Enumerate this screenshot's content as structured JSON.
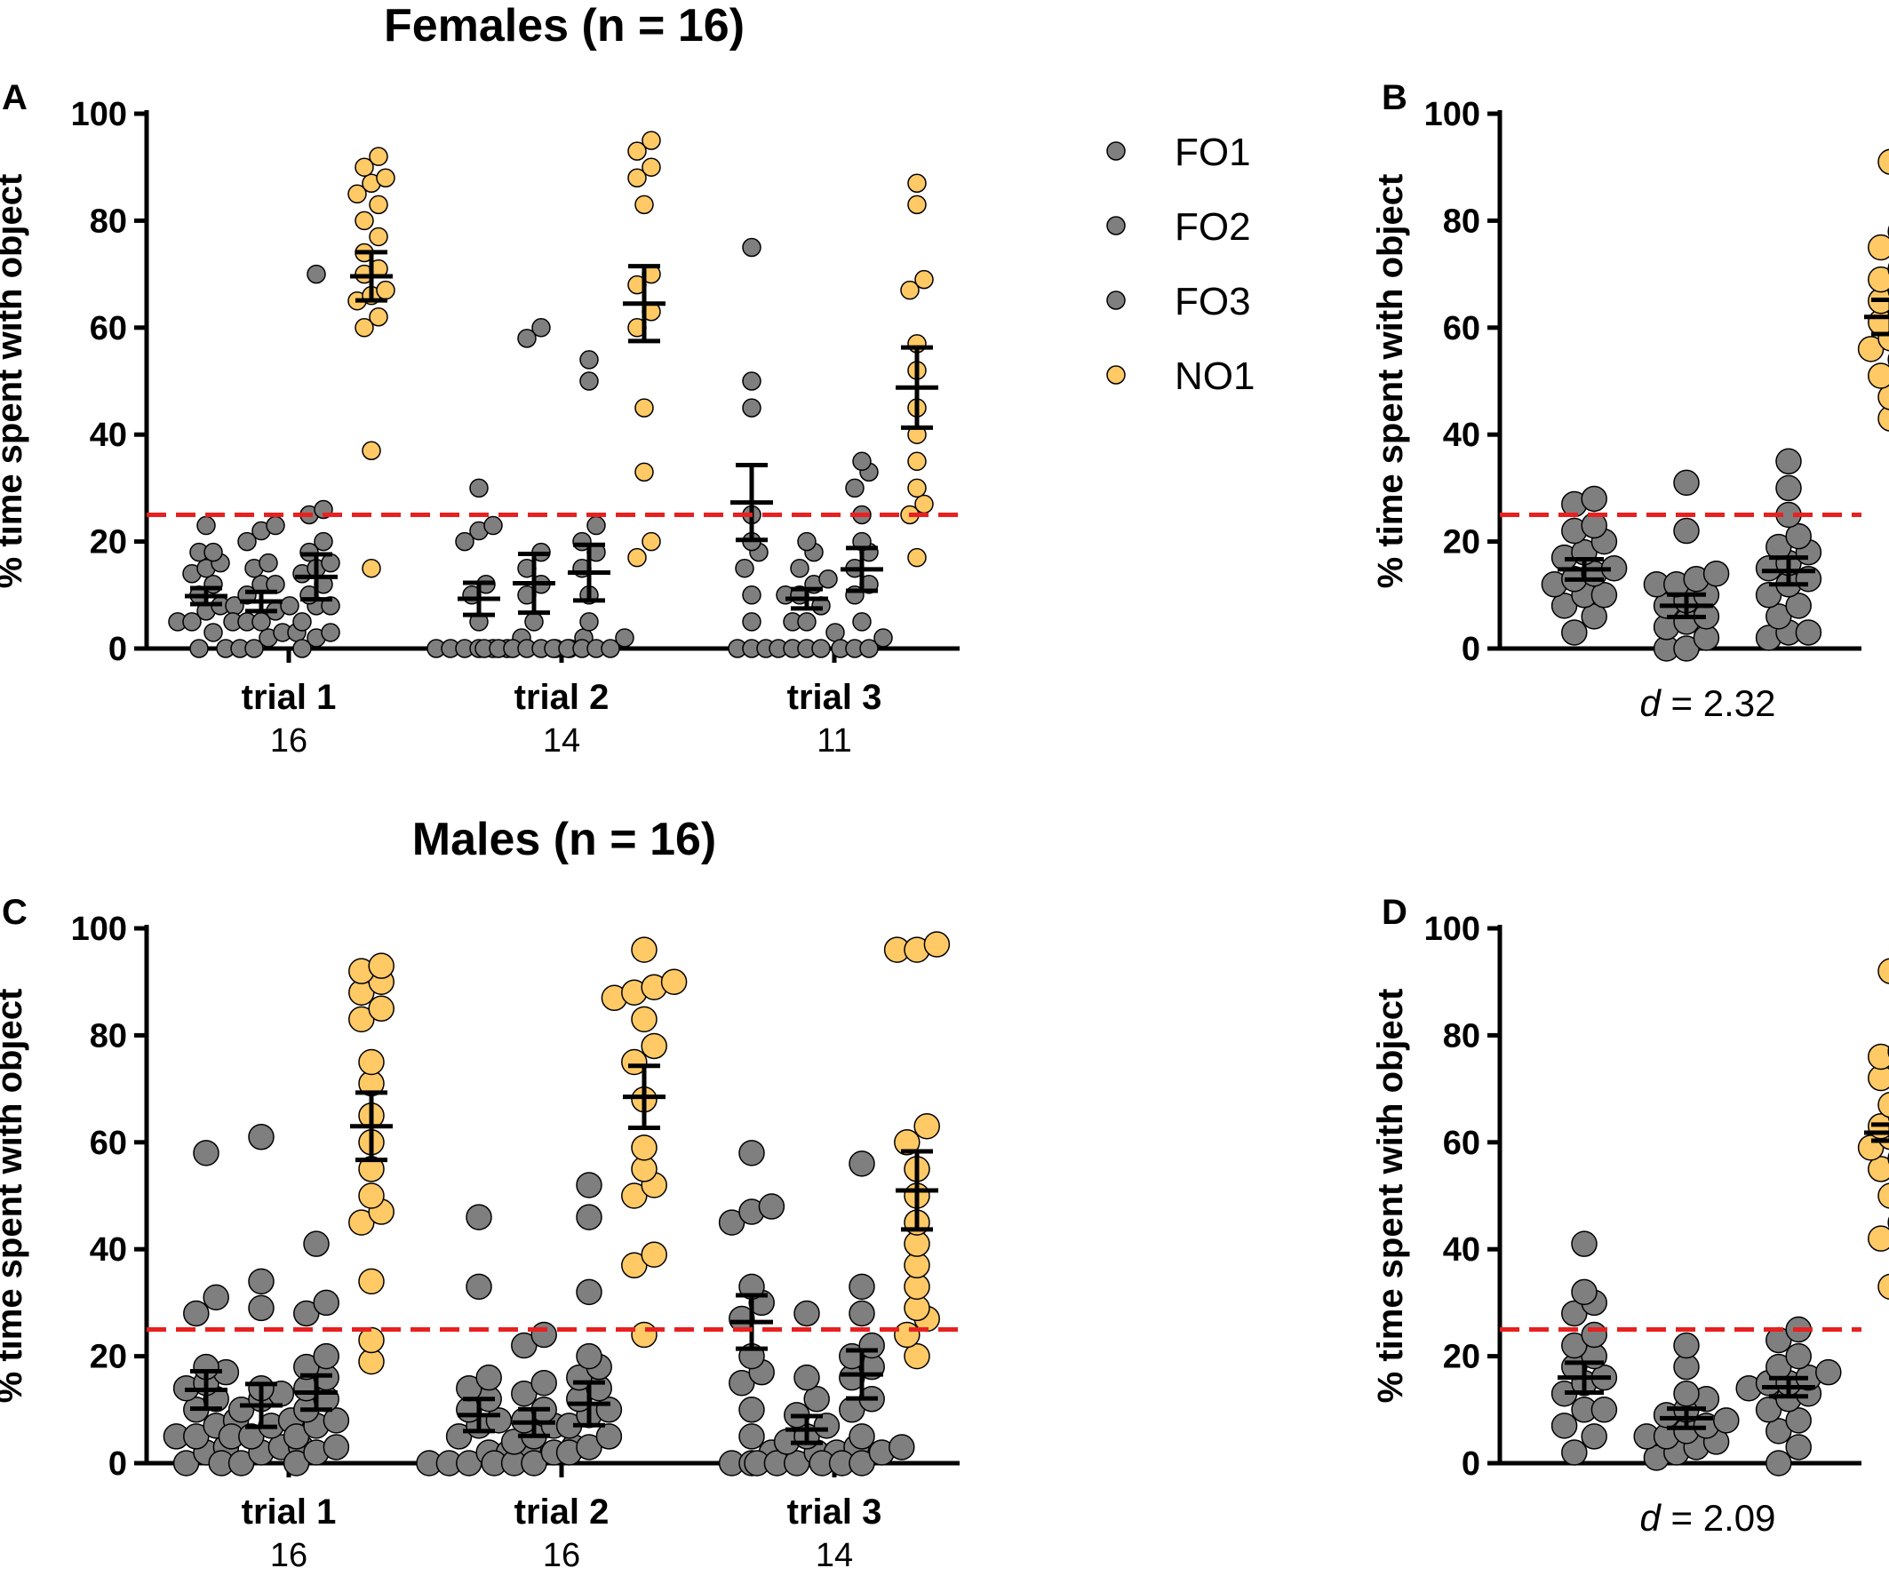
{
  "figure": {
    "female_title": "Females (n = 16)",
    "male_title": "Males (n = 16)",
    "panel_letters": [
      "A",
      "B",
      "C",
      "D"
    ],
    "y_axis_label": "% time spent with object",
    "y_ticks": [
      "0",
      "20",
      "40",
      "60",
      "80",
      "100"
    ]
  },
  "legend": {
    "items": [
      {
        "label": "FO1",
        "color": "#7f7f7f"
      },
      {
        "label": "FO2",
        "color": "#7f7f7f"
      },
      {
        "label": "FO3",
        "color": "#7f7f7f"
      },
      {
        "label": "NO1",
        "color": "#ffc965"
      }
    ]
  },
  "colors": {
    "familiar": "#7f7f7f",
    "novel": "#ffc965",
    "chance_line": "#e8201f",
    "axis": "#000000"
  },
  "chart_data": [
    {
      "panel": "A",
      "type": "scatter",
      "title": "Females (n = 16)",
      "ylabel": "% time spent with object",
      "ylim": [
        0,
        100
      ],
      "chance_line": 25,
      "categories": [
        "trial 1",
        "trial 2",
        "trial 3"
      ],
      "n_per_trial": [
        "16",
        "14",
        "11"
      ],
      "series": [
        {
          "name": "FO1",
          "points": [
            [
              0,
              3,
              5,
              5,
              7,
              8,
              8,
              10,
              12,
              14,
              15,
              16,
              18,
              18,
              23
            ],
            [
              0,
              0,
              0,
              0,
              0,
              0,
              2,
              5,
              10,
              12,
              20,
              22,
              23,
              30
            ],
            [
              0,
              0,
              0,
              5,
              10,
              15,
              18,
              20,
              25,
              45,
              50,
              75
            ]
          ],
          "mean": [
            9.8,
            9.3,
            27.3
          ],
          "sem": [
            1.5,
            3.0,
            7.0
          ]
        },
        {
          "name": "FO2",
          "points": [
            [
              0,
              0,
              0,
              2,
              3,
              3,
              5,
              5,
              5,
              7,
              8,
              10,
              12,
              12,
              15,
              16,
              20,
              22,
              23
            ],
            [
              0,
              0,
              0,
              0,
              0,
              0,
              0,
              2,
              5,
              10,
              12,
              15,
              18,
              58,
              60
            ],
            [
              0,
              0,
              0,
              0,
              3,
              5,
              5,
              8,
              10,
              10,
              12,
              13,
              15,
              18,
              20
            ]
          ],
          "mean": [
            8.8,
            12.2,
            9.3
          ],
          "sem": [
            1.8,
            5.5,
            1.8
          ]
        },
        {
          "name": "FO3",
          "points": [
            [
              0,
              2,
              3,
              5,
              8,
              8,
              10,
              12,
              14,
              15,
              16,
              18,
              20,
              25,
              26,
              70
            ],
            [
              0,
              0,
              0,
              0,
              0,
              2,
              5,
              10,
              15,
              18,
              20,
              23,
              50,
              54
            ],
            [
              0,
              0,
              0,
              2,
              5,
              10,
              12,
              15,
              18,
              20,
              25,
              30,
              33,
              35
            ]
          ],
          "mean": [
            13.4,
            14.2,
            14.8
          ],
          "sem": [
            4.2,
            5.2,
            4.0
          ]
        },
        {
          "name": "NO1",
          "points": [
            [
              15,
              37,
              60,
              62,
              65,
              66,
              67,
              70,
              71,
              74,
              77,
              80,
              83,
              85,
              87,
              88,
              90,
              92
            ],
            [
              17,
              20,
              33,
              45,
              60,
              63,
              68,
              70,
              83,
              88,
              90,
              93,
              95
            ],
            [
              17,
              25,
              27,
              30,
              35,
              40,
              45,
              52,
              57,
              67,
              69,
              83,
              87
            ]
          ],
          "mean": [
            69.6,
            64.5,
            48.8
          ],
          "sem": [
            4.5,
            7.0,
            7.5
          ]
        }
      ]
    },
    {
      "panel": "B",
      "type": "scatter",
      "ylabel": "% time spent with object",
      "ylim": [
        0,
        100
      ],
      "chance_line": 25,
      "effect_prefix": "d",
      "effect_value": " = 2.32",
      "series": [
        {
          "name": "FO1",
          "points": [
            3,
            6,
            8,
            10,
            10,
            12,
            13,
            14,
            15,
            17,
            18,
            20,
            22,
            23,
            27,
            28
          ],
          "mean": 14.8,
          "sem": 1.9
        },
        {
          "name": "FO2",
          "points": [
            0,
            0,
            2,
            4,
            5,
            6,
            8,
            9,
            10,
            12,
            12,
            13,
            14,
            22,
            31
          ],
          "mean": 8.0,
          "sem": 2.1
        },
        {
          "name": "FO3",
          "points": [
            2,
            3,
            3,
            6,
            8,
            10,
            12,
            13,
            15,
            16,
            18,
            19,
            21,
            25,
            30,
            35
          ],
          "mean": 14.5,
          "sem": 2.5
        },
        {
          "name": "NO1",
          "points": [
            43,
            47,
            51,
            54,
            56,
            58,
            59,
            61,
            63,
            65,
            67,
            69,
            71,
            75,
            78,
            91
          ],
          "mean": 62.0,
          "sem": 3.2
        }
      ]
    },
    {
      "panel": "C",
      "type": "scatter",
      "title": "Males (n = 16)",
      "ylabel": "% time spent with object",
      "ylim": [
        0,
        100
      ],
      "chance_line": 25,
      "categories": [
        "trial 1",
        "trial 2",
        "trial 3"
      ],
      "n_per_trial": [
        "16",
        "16",
        "14"
      ],
      "series": [
        {
          "name": "FO1",
          "points": [
            [
              0,
              2,
              3,
              5,
              5,
              7,
              8,
              10,
              12,
              14,
              15,
              17,
              18,
              28,
              31,
              58
            ],
            [
              0,
              0,
              0,
              2,
              2,
              3,
              5,
              7,
              8,
              10,
              12,
              14,
              16,
              33,
              46
            ],
            [
              0,
              0,
              2,
              5,
              10,
              15,
              17,
              20,
              27,
              30,
              33,
              45,
              47,
              48,
              58
            ]
          ],
          "mean": [
            13.7,
            9.0,
            26.4
          ],
          "sem": [
            3.5,
            3.0,
            5.0
          ]
        },
        {
          "name": "FO2",
          "points": [
            [
              0,
              0,
              2,
              3,
              3,
              5,
              5,
              7,
              8,
              10,
              12,
              13,
              14,
              29,
              34,
              61
            ],
            [
              0,
              0,
              0,
              2,
              3,
              4,
              5,
              7,
              8,
              10,
              13,
              15,
              22,
              24
            ],
            [
              0,
              0,
              0,
              2,
              2,
              3,
              4,
              5,
              7,
              9,
              12,
              16,
              28
            ]
          ],
          "mean": [
            10.8,
            7.6,
            6.3
          ],
          "sem": [
            4.0,
            2.5,
            2.5
          ]
        },
        {
          "name": "FO3",
          "points": [
            [
              0,
              2,
              3,
              5,
              7,
              8,
              10,
              12,
              14,
              16,
              18,
              20,
              28,
              30,
              41
            ],
            [
              2,
              3,
              5,
              7,
              9,
              10,
              12,
              14,
              16,
              18,
              20,
              32,
              46,
              52
            ],
            [
              0,
              0,
              0,
              2,
              3,
              5,
              10,
              12,
              16,
              18,
              20,
              22,
              28,
              33,
              56
            ]
          ],
          "mean": [
            13.2,
            11.1,
            16.6
          ],
          "sem": [
            3.2,
            4.0,
            4.5
          ]
        },
        {
          "name": "NO1",
          "points": [
            [
              19,
              23,
              34,
              45,
              47,
              50,
              55,
              60,
              65,
              71,
              75,
              83,
              85,
              88,
              90,
              92,
              93
            ],
            [
              24,
              37,
              39,
              50,
              52,
              55,
              59,
              68,
              75,
              78,
              83,
              87,
              88,
              89,
              90,
              96
            ],
            [
              20,
              24,
              27,
              29,
              33,
              37,
              41,
              45,
              50,
              55,
              60,
              63,
              96,
              96,
              97
            ]
          ],
          "mean": [
            63.0,
            68.5,
            51.0
          ],
          "sem": [
            6.3,
            5.8,
            7.3
          ]
        }
      ]
    },
    {
      "panel": "D",
      "type": "scatter",
      "ylabel": "% time spent with object",
      "ylim": [
        0,
        100
      ],
      "chance_line": 25,
      "effect_prefix": "d",
      "effect_value": " = 2.09",
      "series": [
        {
          "name": "FO1",
          "points": [
            2,
            5,
            7,
            10,
            10,
            13,
            15,
            16,
            18,
            20,
            22,
            24,
            28,
            30,
            32,
            41
          ],
          "mean": 16.0,
          "sem": 2.8
        },
        {
          "name": "FO2",
          "points": [
            1,
            2,
            3,
            4,
            5,
            5,
            6,
            7,
            8,
            9,
            10,
            12,
            13,
            18,
            22
          ],
          "mean": 8.4,
          "sem": 1.8
        },
        {
          "name": "FO3",
          "points": [
            0,
            3,
            6,
            8,
            10,
            12,
            13,
            14,
            15,
            15,
            16,
            17,
            18,
            20,
            23,
            25
          ],
          "mean": 14.2,
          "sem": 1.7
        },
        {
          "name": "NO1",
          "points": [
            33,
            42,
            45,
            50,
            55,
            57,
            59,
            61,
            62,
            63,
            65,
            67,
            72,
            75,
            76,
            77,
            92
          ],
          "mean": 61.8,
          "sem": 1.5
        }
      ]
    }
  ]
}
